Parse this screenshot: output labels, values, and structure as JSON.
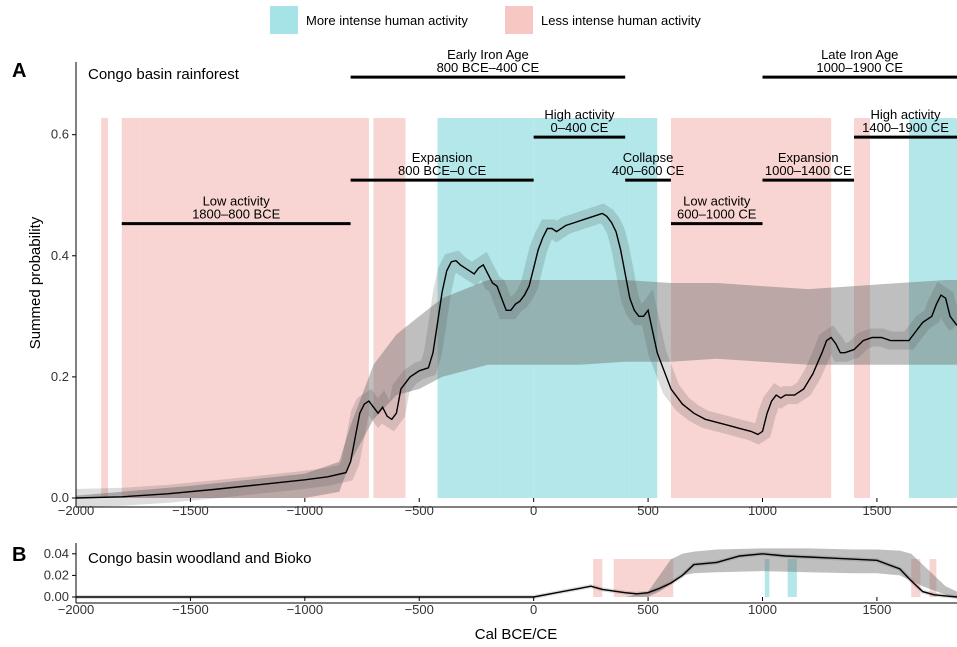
{
  "legend": {
    "more_label": "More intense human activity",
    "less_label": "Less intense human activity",
    "more_color": "#a6e3e6",
    "less_color": "#f6c7c3"
  },
  "x_axis": {
    "title": "Cal BCE/CE",
    "ticks": [
      -2000,
      -1500,
      -1000,
      -500,
      0,
      500,
      1000,
      1500
    ],
    "tick_labels": [
      "−2000",
      "−1500",
      "−1000",
      "−500",
      "0",
      "500",
      "1000",
      "1500"
    ]
  },
  "chart_data": [
    {
      "type": "area",
      "panel_letter": "A",
      "title": "Congo basin rainforest",
      "ylabel": "Summed probability",
      "xlim": [
        -2000,
        1850
      ],
      "ylim": [
        0,
        0.72
      ],
      "y_ticks": [
        0.0,
        0.2,
        0.4,
        0.6
      ],
      "y_tick_labels": [
        "0.0",
        "0.2",
        "0.4",
        "0.6"
      ],
      "grid": false,
      "legend_position": "top",
      "series": [
        {
          "name": "Summed probability",
          "style": "black line",
          "x": [
            -2000,
            -1800,
            -1600,
            -1400,
            -1200,
            -1000,
            -900,
            -820,
            -800,
            -780,
            -760,
            -740,
            -720,
            -700,
            -680,
            -660,
            -640,
            -620,
            -600,
            -580,
            -560,
            -540,
            -500,
            -460,
            -440,
            -420,
            -400,
            -380,
            -360,
            -340,
            -320,
            -300,
            -280,
            -260,
            -240,
            -220,
            -200,
            -180,
            -160,
            -140,
            -120,
            -100,
            -80,
            -60,
            -40,
            -20,
            0,
            20,
            40,
            60,
            80,
            100,
            140,
            180,
            220,
            260,
            300,
            320,
            340,
            360,
            380,
            400,
            420,
            440,
            460,
            480,
            500,
            540,
            600,
            650,
            700,
            750,
            800,
            850,
            900,
            950,
            980,
            1000,
            1020,
            1040,
            1060,
            1080,
            1100,
            1140,
            1180,
            1220,
            1260,
            1280,
            1300,
            1320,
            1340,
            1360,
            1400,
            1440,
            1480,
            1520,
            1560,
            1600,
            1640,
            1660,
            1680,
            1700,
            1740,
            1760,
            1780,
            1800,
            1820,
            1840,
            1850
          ],
          "values": [
            0.0,
            0.002,
            0.007,
            0.014,
            0.022,
            0.03,
            0.035,
            0.042,
            0.06,
            0.1,
            0.14,
            0.155,
            0.16,
            0.15,
            0.14,
            0.15,
            0.135,
            0.13,
            0.14,
            0.18,
            0.19,
            0.2,
            0.21,
            0.215,
            0.24,
            0.29,
            0.34,
            0.375,
            0.39,
            0.392,
            0.385,
            0.38,
            0.375,
            0.37,
            0.38,
            0.385,
            0.37,
            0.355,
            0.35,
            0.33,
            0.31,
            0.31,
            0.32,
            0.325,
            0.335,
            0.35,
            0.38,
            0.41,
            0.43,
            0.445,
            0.445,
            0.44,
            0.45,
            0.455,
            0.46,
            0.465,
            0.47,
            0.465,
            0.455,
            0.44,
            0.41,
            0.37,
            0.33,
            0.31,
            0.3,
            0.3,
            0.31,
            0.24,
            0.18,
            0.155,
            0.14,
            0.13,
            0.125,
            0.12,
            0.115,
            0.11,
            0.105,
            0.11,
            0.14,
            0.16,
            0.17,
            0.165,
            0.17,
            0.17,
            0.18,
            0.205,
            0.24,
            0.26,
            0.265,
            0.255,
            0.24,
            0.24,
            0.245,
            0.26,
            0.265,
            0.265,
            0.26,
            0.26,
            0.26,
            0.27,
            0.28,
            0.29,
            0.3,
            0.32,
            0.335,
            0.33,
            0.3,
            0.29,
            0.285
          ]
        },
        {
          "name": "Simulated envelope",
          "style": "grey band",
          "x": [
            -2000,
            -1500,
            -1000,
            -850,
            -800,
            -700,
            -600,
            -500,
            -400,
            -200,
            0,
            200,
            400,
            600,
            800,
            1000,
            1200,
            1400,
            1600,
            1800,
            1850
          ],
          "lower": [
            0.0,
            0.0,
            0.0,
            0.01,
            0.06,
            0.13,
            0.17,
            0.18,
            0.2,
            0.22,
            0.22,
            0.22,
            0.225,
            0.225,
            0.23,
            0.225,
            0.22,
            0.22,
            0.22,
            0.22,
            0.22
          ],
          "upper": [
            0.004,
            0.02,
            0.04,
            0.06,
            0.12,
            0.22,
            0.27,
            0.3,
            0.33,
            0.36,
            0.36,
            0.36,
            0.36,
            0.355,
            0.355,
            0.35,
            0.345,
            0.35,
            0.355,
            0.36,
            0.36
          ]
        }
      ],
      "shaded_regions": {
        "more_intense": [
          [
            -420,
            -150
          ],
          [
            -150,
            0
          ],
          [
            0,
            420
          ],
          [
            420,
            540
          ],
          [
            1640,
            1850
          ]
        ],
        "less_intense": [
          [
            -1890,
            -1860
          ],
          [
            -1800,
            -1720
          ],
          [
            -1720,
            -800
          ],
          [
            -800,
            -720
          ],
          [
            -700,
            -560
          ],
          [
            600,
            1000
          ],
          [
            1000,
            1300
          ],
          [
            1400,
            1470
          ]
        ]
      },
      "annotations": [
        {
          "label_line1": "Early Iron Age",
          "label_line2": "800 BCE–400 CE",
          "start": -800,
          "end": 400,
          "y": 0.695
        },
        {
          "label_line1": "Late Iron Age",
          "label_line2": "1000–1900 CE",
          "start": 1000,
          "end": 1900,
          "y": 0.695
        },
        {
          "label_line1": "High activity",
          "label_line2": "0–400 CE",
          "start": 0,
          "end": 400,
          "y": 0.596
        },
        {
          "label_line1": "High activity",
          "label_line2": "1400–1900 CE",
          "start": 1400,
          "end": 1900,
          "y": 0.596
        },
        {
          "label_line1": "Expansion",
          "label_line2": "800 BCE–0 CE",
          "start": -800,
          "end": 0,
          "y": 0.525
        },
        {
          "label_line1": "Collapse",
          "label_line2": "400–600 CE",
          "start": 400,
          "end": 600,
          "y": 0.525
        },
        {
          "label_line1": "Expansion",
          "label_line2": "1000–1400 CE",
          "start": 1000,
          "end": 1400,
          "y": 0.525
        },
        {
          "label_line1": "Low activity",
          "label_line2": "1800–800 BCE",
          "start": -1800,
          "end": -800,
          "y": 0.453
        },
        {
          "label_line1": "Low activity",
          "label_line2": "600–1000 CE",
          "start": 600,
          "end": 1000,
          "y": 0.453
        }
      ]
    },
    {
      "type": "area",
      "panel_letter": "B",
      "title": "Congo basin woodland and Bioko",
      "xlim": [
        -2000,
        1850
      ],
      "ylim": [
        0,
        0.05
      ],
      "y_ticks": [
        0.0,
        0.02,
        0.04
      ],
      "y_tick_labels": [
        "0.00",
        "0.02",
        "0.04"
      ],
      "grid": false,
      "series": [
        {
          "name": "Summed probability",
          "style": "black line",
          "x": [
            -2000,
            0,
            100,
            200,
            250,
            300,
            400,
            450,
            500,
            550,
            600,
            650,
            700,
            800,
            900,
            1000,
            1100,
            1200,
            1300,
            1400,
            1500,
            1550,
            1600,
            1650,
            1700,
            1750,
            1800,
            1850
          ],
          "values": [
            0.0,
            0.0,
            0.004,
            0.008,
            0.01,
            0.007,
            0.004,
            0.003,
            0.004,
            0.008,
            0.013,
            0.02,
            0.03,
            0.032,
            0.038,
            0.04,
            0.038,
            0.037,
            0.036,
            0.035,
            0.034,
            0.03,
            0.026,
            0.015,
            0.005,
            0.002,
            0.001,
            0.0
          ]
        },
        {
          "name": "Simulated envelope",
          "style": "grey band",
          "x": [
            -2000,
            400,
            500,
            550,
            600,
            650,
            700,
            800,
            1000,
            1200,
            1400,
            1500,
            1600,
            1650,
            1700,
            1750,
            1800,
            1850
          ],
          "lower": [
            0.0,
            0.0,
            0.0,
            0.005,
            0.012,
            0.02,
            0.022,
            0.023,
            0.024,
            0.023,
            0.022,
            0.022,
            0.02,
            0.015,
            0.01,
            0.006,
            0.002,
            0.0
          ],
          "upper": [
            0.0,
            0.0,
            0.005,
            0.02,
            0.035,
            0.04,
            0.042,
            0.044,
            0.045,
            0.045,
            0.044,
            0.044,
            0.043,
            0.04,
            0.03,
            0.02,
            0.01,
            0.005
          ]
        }
      ],
      "shaded_regions": {
        "more_intense": [
          [
            1010,
            1030
          ],
          [
            1110,
            1150
          ]
        ],
        "less_intense": [
          [
            260,
            300
          ],
          [
            350,
            610
          ],
          [
            1650,
            1690
          ],
          [
            1730,
            1760
          ]
        ]
      }
    }
  ]
}
